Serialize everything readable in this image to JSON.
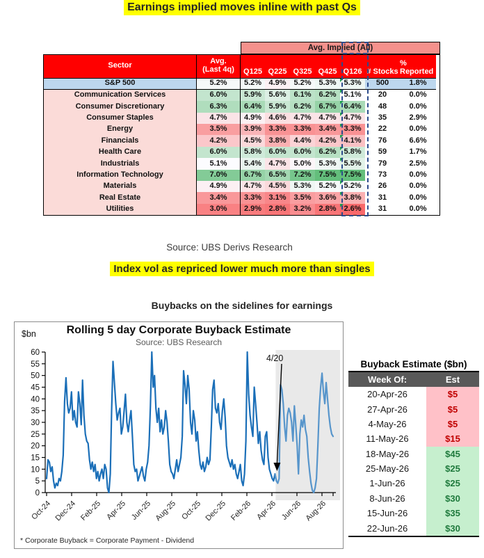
{
  "page": {
    "title1": "Earnings implied moves inline with past Qs",
    "source_line": "Source:  UBS Derivs Research",
    "title2": "Index vol as repriced lower much more than singles",
    "title3": "Buybacks on the sidelines for earnings"
  },
  "sector_table": {
    "band_header": "Avg. Implied (All)",
    "headers": {
      "sector": "Sector",
      "avg_line1": "Avg.",
      "avg_line2": "(Last 4q)",
      "quarters": [
        "Q125",
        "Q225",
        "Q325",
        "Q425",
        "Q126"
      ],
      "stocks": "# Stocks",
      "reported": "% Reported"
    },
    "heat_scale": {
      "min": 2.6,
      "mid": 5.1,
      "max": 7.5,
      "min_color": "#F8696B",
      "mid_color": "#FCFCFF",
      "max_color": "#63BE7B"
    },
    "index_row_bg": "#BDD7EE",
    "sector_col_bg": "#FBDBD8",
    "rows": [
      {
        "sector": "S&P 500",
        "avg": "5.2%",
        "q": [
          "5.2%",
          "4.9%",
          "5.2%",
          "5.3%",
          "5.3%"
        ],
        "stocks": "500",
        "reported": "1.8%",
        "index": true
      },
      {
        "sector": "Communication Services",
        "avg": "6.0%",
        "q": [
          "5.9%",
          "5.6%",
          "6.1%",
          "6.2%",
          "5.1%"
        ],
        "stocks": "20",
        "reported": "0.0%"
      },
      {
        "sector": "Consumer Discretionary",
        "avg": "6.3%",
        "q": [
          "6.4%",
          "5.9%",
          "6.2%",
          "6.7%",
          "6.4%"
        ],
        "stocks": "48",
        "reported": "0.0%"
      },
      {
        "sector": "Consumer Staples",
        "avg": "4.7%",
        "q": [
          "4.9%",
          "4.6%",
          "4.7%",
          "4.7%",
          "4.7%"
        ],
        "stocks": "35",
        "reported": "2.9%"
      },
      {
        "sector": "Energy",
        "avg": "3.5%",
        "q": [
          "3.9%",
          "3.3%",
          "3.3%",
          "3.4%",
          "3.3%"
        ],
        "stocks": "22",
        "reported": "0.0%"
      },
      {
        "sector": "Financials",
        "avg": "4.2%",
        "q": [
          "4.5%",
          "3.8%",
          "4.4%",
          "4.2%",
          "4.1%"
        ],
        "stocks": "76",
        "reported": "6.6%"
      },
      {
        "sector": "Health Care",
        "avg": "6.0%",
        "q": [
          "5.8%",
          "6.0%",
          "6.0%",
          "6.2%",
          "5.8%"
        ],
        "stocks": "59",
        "reported": "1.7%"
      },
      {
        "sector": "Industrials",
        "avg": "5.1%",
        "q": [
          "5.4%",
          "4.7%",
          "5.0%",
          "5.3%",
          "5.5%"
        ],
        "stocks": "79",
        "reported": "2.5%"
      },
      {
        "sector": "Information Technology",
        "avg": "7.0%",
        "q": [
          "6.7%",
          "6.5%",
          "7.2%",
          "7.5%",
          "7.5%"
        ],
        "stocks": "73",
        "reported": "0.0%"
      },
      {
        "sector": "Materials",
        "avg": "4.9%",
        "q": [
          "4.7%",
          "4.5%",
          "5.3%",
          "5.2%",
          "5.2%"
        ],
        "stocks": "26",
        "reported": "0.0%"
      },
      {
        "sector": "Real Estate",
        "avg": "3.4%",
        "q": [
          "3.3%",
          "3.1%",
          "3.5%",
          "3.6%",
          "3.8%"
        ],
        "stocks": "31",
        "reported": "0.0%"
      },
      {
        "sector": "Utilities",
        "avg": "3.0%",
        "q": [
          "2.9%",
          "2.8%",
          "3.2%",
          "2.8%",
          "2.6%"
        ],
        "stocks": "31",
        "reported": "0.0%"
      }
    ]
  },
  "chart_data": {
    "type": "line",
    "title": "Rolling 5 day Corporate Buyback Estimate",
    "subtitle": "Source: UBS Research",
    "ylabel_unit": "$bn",
    "ylim": [
      0,
      60
    ],
    "ytick_step": 5,
    "x_ticks": [
      "Oct-24",
      "Dec-24",
      "Feb-25",
      "Apr-25",
      "Jun-25",
      "Aug-25",
      "Oct-25",
      "Dec-25",
      "Feb-26",
      "Apr-26",
      "Jun-26",
      "Aug-26"
    ],
    "annotation": "4/20",
    "footnote": "* Corporate Buyback = Corporate Payment - Dividend",
    "line_color": "#1B6FB8",
    "forecast_color": "#5795CB",
    "shade_color": "#E9E9E9",
    "axis_color": "#000000",
    "forecast_start_index": 166,
    "values": [
      6,
      14,
      13,
      9,
      11,
      5,
      2,
      4,
      3,
      6,
      5,
      9,
      16,
      39,
      49,
      38,
      34,
      36,
      43,
      31,
      35,
      30,
      28,
      43,
      38,
      29,
      48,
      33,
      25,
      22,
      21,
      14,
      10,
      13,
      9,
      12,
      6,
      9,
      5,
      8,
      10,
      6,
      12,
      10,
      2,
      0,
      8,
      35,
      56,
      47,
      38,
      31,
      34,
      36,
      25,
      28,
      35,
      42,
      30,
      26,
      31,
      35,
      24,
      12,
      9,
      10,
      5,
      7,
      9,
      11,
      7,
      5,
      10,
      13,
      20,
      37,
      60,
      45,
      50,
      36,
      30,
      36,
      26,
      31,
      25,
      28,
      35,
      30,
      22,
      12,
      9,
      8,
      6,
      10,
      14,
      9,
      12,
      15,
      24,
      52,
      46,
      38,
      50,
      44,
      30,
      25,
      35,
      31,
      22,
      26,
      18,
      12,
      10,
      13,
      9,
      11,
      15,
      12,
      14,
      28,
      44,
      48,
      36,
      34,
      38,
      30,
      27,
      35,
      40,
      32,
      20,
      15,
      13,
      11,
      14,
      10,
      12,
      8,
      6,
      9,
      12,
      5,
      3,
      8,
      22,
      60,
      42,
      33,
      28,
      24,
      45,
      38,
      30,
      21,
      26,
      18,
      14,
      12,
      24,
      26,
      15,
      10,
      8,
      6,
      5,
      8,
      5,
      4,
      6,
      46,
      44,
      38,
      28,
      22,
      33,
      36,
      34,
      30,
      22,
      37,
      29,
      20,
      8,
      25,
      31,
      28,
      33,
      27,
      24,
      15,
      9,
      4,
      1,
      0,
      2,
      6,
      20,
      36,
      45,
      51,
      43,
      38,
      47,
      40,
      33,
      28,
      25,
      24
    ]
  },
  "buyback_table": {
    "title": "Buyback Estimate ($bn)",
    "headers": [
      "Week Of:",
      "Est"
    ],
    "header_bg": "#595959",
    "bad_bg": "#FFC1C8",
    "bad_text": "#C00000",
    "good_bg": "#C6EFCE",
    "good_text": "#1F7A3D",
    "rows": [
      {
        "week": "20-Apr-26",
        "est": "$5",
        "tone": "bad"
      },
      {
        "week": "27-Apr-26",
        "est": "$5",
        "tone": "bad"
      },
      {
        "week": "4-May-26",
        "est": "$5",
        "tone": "bad"
      },
      {
        "week": "11-May-26",
        "est": "$15",
        "tone": "bad"
      },
      {
        "week": "18-May-26",
        "est": "$45",
        "tone": "good"
      },
      {
        "week": "25-May-26",
        "est": "$25",
        "tone": "good"
      },
      {
        "week": "1-Jun-26",
        "est": "$25",
        "tone": "good"
      },
      {
        "week": "8-Jun-26",
        "est": "$30",
        "tone": "good"
      },
      {
        "week": "15-Jun-26",
        "est": "$35",
        "tone": "good"
      },
      {
        "week": "22-Jun-26",
        "est": "$30",
        "tone": "good"
      }
    ]
  }
}
